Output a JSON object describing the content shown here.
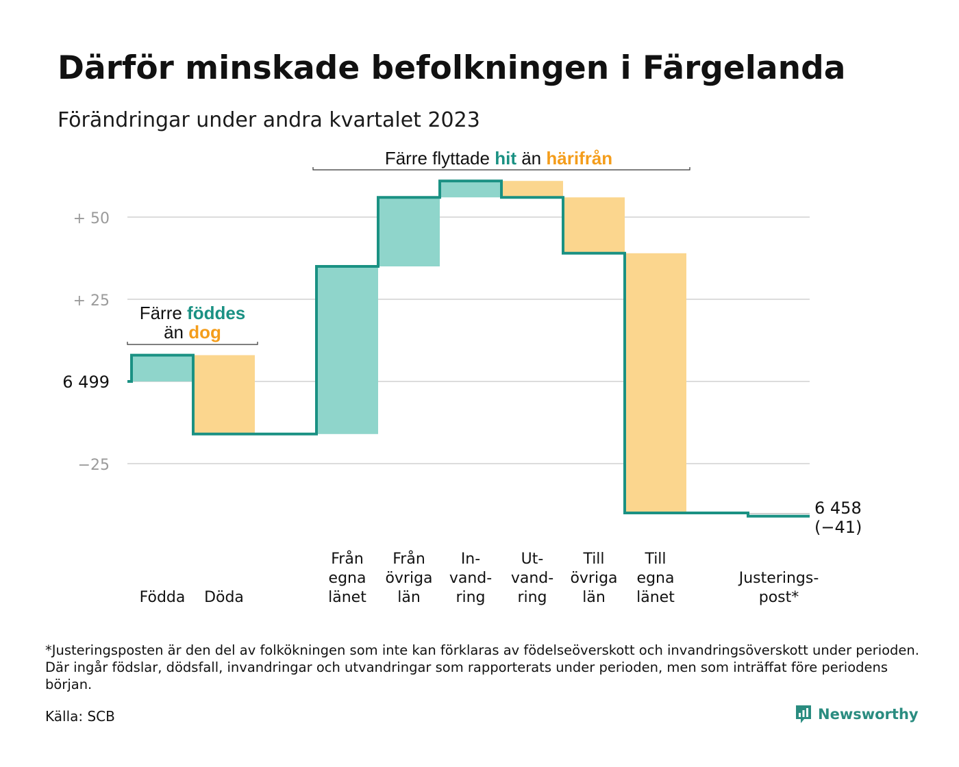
{
  "title": "Därför minskade befolkningen i Färgelanda",
  "subtitle": "Förändringar under andra kvartalet 2023",
  "footnote": "*Justeringsposten är den del av folkökningen som inte kan förklaras av födelseöverskott och invandringsöverskott under perioden. Där ingår födslar, dödsfall, invandringar och utvandringar som rapporterats under perioden, men som inträffat före periodens början.",
  "source": "Källa: SCB",
  "brand": "Newsworthy",
  "colors": {
    "teal": "#1a9183",
    "teal_fill": "#8fd5cb",
    "orange": "#f49d1b",
    "orange_fill": "#fbd68e",
    "grid": "#dcdcdc",
    "axis_text": "#9a9a9a"
  },
  "annotations": {
    "births_deaths": {
      "line1_prefix": "Färre ",
      "line1_highlight": "föddes",
      "line2_prefix": "än ",
      "line2_highlight": "dog"
    },
    "migration": {
      "prefix": "Färre flyttade ",
      "highlight1": "hit",
      "middle": " än ",
      "highlight2": "härifrån"
    }
  },
  "chart_data": {
    "type": "waterfall",
    "title": "Därför minskade befolkningen i Färgelanda",
    "subtitle": "Förändringar under andra kvartalet 2023",
    "start_value": 6499,
    "start_label": "6  499",
    "end_value": 6458,
    "end_label_value": "6 458",
    "end_label_change": "(−41)",
    "y_ticks": [
      {
        "value": 50,
        "label": "+  50"
      },
      {
        "value": 25,
        "label": "+  25"
      },
      {
        "value": 0,
        "label": "6  499"
      },
      {
        "value": -25,
        "label": "−25"
      }
    ],
    "ylim": [
      -48,
      62
    ],
    "grid": true,
    "steps": [
      {
        "label": "Födda",
        "value": 8,
        "kind": "in"
      },
      {
        "label": "Döda",
        "value": -24,
        "kind": "out"
      },
      {
        "label": "",
        "value": 0,
        "kind": "gap"
      },
      {
        "label": "Från egna länet",
        "value": 51,
        "kind": "in"
      },
      {
        "label": "Från övriga län",
        "value": 21,
        "kind": "in"
      },
      {
        "label": "In-vand-ring",
        "value": 5,
        "kind": "in"
      },
      {
        "label": "Ut-vand-ring",
        "value": -5,
        "kind": "out"
      },
      {
        "label": "Till övriga län",
        "value": -17,
        "kind": "out"
      },
      {
        "label": "Till egna länet",
        "value": -79,
        "kind": "out"
      },
      {
        "label": "",
        "value": 0,
        "kind": "gap"
      },
      {
        "label": "Justerings-post*",
        "value": -1,
        "kind": "out"
      }
    ],
    "x_labels": [
      {
        "lines": [
          "Födda"
        ]
      },
      {
        "lines": [
          "Döda"
        ]
      },
      {
        "lines": []
      },
      {
        "lines": [
          "Från",
          "egna",
          "länet"
        ]
      },
      {
        "lines": [
          "Från",
          "övriga",
          "län"
        ]
      },
      {
        "lines": [
          "In-",
          "vand-",
          "ring"
        ]
      },
      {
        "lines": [
          "Ut-",
          "vand-",
          "ring"
        ]
      },
      {
        "lines": [
          "Till",
          "övriga",
          "län"
        ]
      },
      {
        "lines": [
          "Till",
          "egna",
          "länet"
        ]
      },
      {
        "lines": []
      },
      {
        "lines": [
          "Justerings-",
          "post*"
        ]
      }
    ]
  }
}
